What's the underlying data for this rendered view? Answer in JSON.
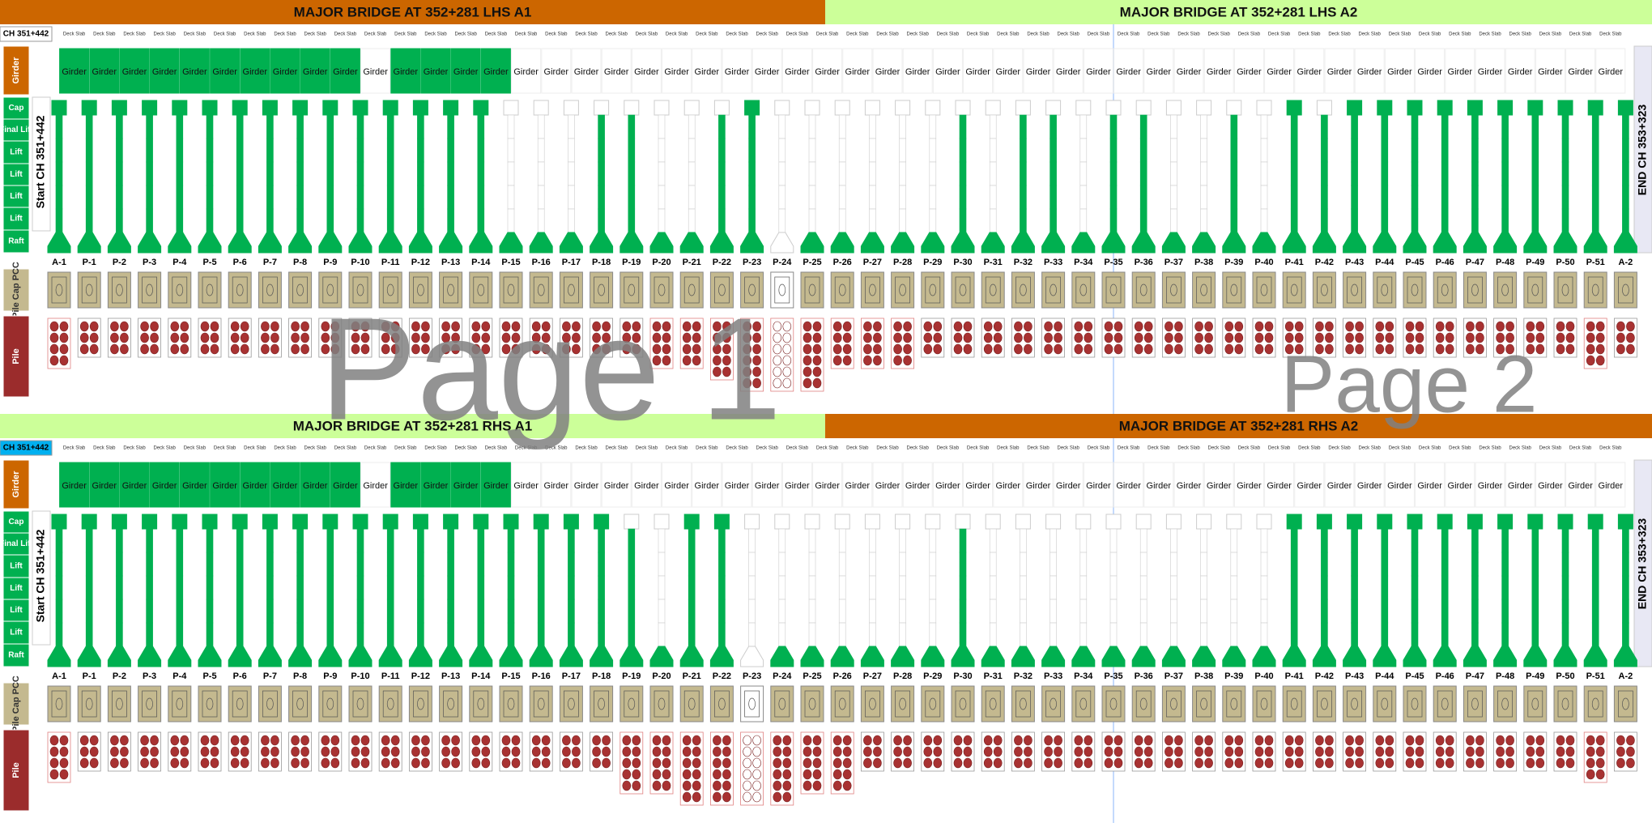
{
  "watermarks": [
    "Page 1",
    "Page 2"
  ],
  "row_labels": [
    "Girder",
    "Cap",
    "Final Lift",
    "Lift",
    "Lift",
    "Lift",
    "Lift",
    "Raft",
    "Pile Cap PCC",
    "Pile"
  ],
  "chainage": "CH 351+442",
  "start_label": "Start CH 351+442",
  "end_label": "END CH 353+323",
  "piers": [
    "A-1",
    "P-1",
    "P-2",
    "P-3",
    "P-4",
    "P-5",
    "P-6",
    "P-7",
    "P-8",
    "P-9",
    "P-10",
    "P-11",
    "P-12",
    "P-13",
    "P-14",
    "P-15",
    "P-16",
    "P-17",
    "P-18",
    "P-19",
    "P-20",
    "P-21",
    "P-22",
    "P-23",
    "P-24",
    "P-25",
    "P-26",
    "P-27",
    "P-28",
    "P-29",
    "P-30",
    "P-31",
    "P-32",
    "P-33",
    "P-34",
    "P-35",
    "P-36",
    "P-37",
    "P-38",
    "P-39",
    "P-40",
    "P-41",
    "P-42",
    "P-43",
    "P-44",
    "P-45",
    "P-46",
    "P-47",
    "P-48",
    "P-49",
    "P-50",
    "P-51",
    "A-2"
  ],
  "deck_slabs": [
    "Deck Slab",
    "Deck Slab",
    "Deck Slab",
    "Deck Slab",
    "Deck Slab",
    "Deck Slab",
    "Deck Slab",
    "Deck Slab",
    "Deck Slab",
    "Deck Slab",
    "Deck Slab",
    "Deck Slab",
    "Deck Slab",
    "Deck Slab",
    "Deck Slab",
    "Deck Slab",
    "Deck Slab",
    "Deck Slab",
    "Deck Slab",
    "Deck Slab",
    "Deck Slab",
    "Deck Slab",
    "Deck Slab",
    "Deck Slab",
    "Deck Slab",
    "Deck Slab",
    "Deck Slab",
    "Deck Slab",
    "Deck Slab",
    "Deck Slab",
    "Deck Slab",
    "Deck Slab",
    "Deck Slab",
    "Deck Slab",
    "Deck Slab",
    "Deck Slab",
    "Deck Slab",
    "Deck Slab",
    "Deck Slab",
    "Deck Slab",
    "Deck Slab",
    "Deck Slab",
    "Deck Slab",
    "Deck Slab",
    "Deck Slab",
    "Deck Slab",
    "Deck Slab",
    "Deck Slab",
    "Deck Slab",
    "Deck Slab",
    "Deck Slab",
    "Deck Slab"
  ],
  "girders": [
    "Girder",
    "Girder",
    "Girder",
    "Girder",
    "Girder",
    "Girder",
    "Girder",
    "Girder",
    "Girder",
    "Girder",
    "Girder",
    "Girder",
    "Girder",
    "Girder",
    "Girder",
    "Girder",
    "Girder",
    "Girder",
    "Girder",
    "Girder",
    "Girder",
    "Girder",
    "Girder",
    "Girder",
    "Girder",
    "Girder",
    "Girder",
    "Girder",
    "Girder",
    "Girder",
    "Girder",
    "Girder",
    "Girder",
    "Girder",
    "Girder",
    "Girder",
    "Girder",
    "Girder",
    "Girder",
    "Girder",
    "Girder",
    "Girder",
    "Girder",
    "Girder",
    "Girder",
    "Girder",
    "Girder",
    "Girder",
    "Girder",
    "Girder",
    "Girder",
    "Girder"
  ],
  "sections": [
    {
      "headers": [
        {
          "title": "MAJOR BRIDGE AT 352+281 LHS A1",
          "color": "#cc6600"
        },
        {
          "title": "MAJOR BRIDGE AT 352+281 LHS A2",
          "color": "#ccff99"
        }
      ],
      "chainage_color": "#ffffff",
      "girder_done": [
        1,
        1,
        1,
        1,
        1,
        1,
        1,
        1,
        1,
        1,
        0,
        1,
        1,
        1,
        1,
        0,
        0,
        0,
        0,
        0,
        0,
        0,
        0,
        0,
        0,
        0,
        0,
        0,
        0,
        0,
        0,
        0,
        0,
        0,
        0,
        0,
        0,
        0,
        0,
        0,
        0,
        0,
        0,
        0,
        0,
        0,
        0,
        0,
        0,
        0,
        0,
        0
      ],
      "pier_status": [
        7,
        7,
        7,
        7,
        7,
        7,
        7,
        7,
        7,
        7,
        7,
        7,
        7,
        7,
        7,
        1,
        1,
        1,
        6,
        6,
        1,
        1,
        6,
        7,
        0,
        1,
        1,
        1,
        1,
        1,
        6,
        1,
        6,
        6,
        1,
        6,
        6,
        1,
        1,
        6,
        1,
        7,
        6,
        7,
        7,
        7,
        7,
        7,
        7,
        7,
        7,
        7,
        7
      ],
      "pile_cap_done": [
        1,
        1,
        1,
        1,
        1,
        1,
        1,
        1,
        1,
        1,
        1,
        1,
        1,
        1,
        1,
        1,
        1,
        1,
        1,
        1,
        1,
        1,
        1,
        1,
        0,
        1,
        1,
        1,
        1,
        1,
        1,
        1,
        1,
        1,
        1,
        1,
        1,
        1,
        1,
        1,
        1,
        1,
        1,
        1,
        1,
        1,
        1,
        1,
        1,
        1,
        1,
        1,
        1
      ],
      "pile_count": [
        8,
        6,
        6,
        6,
        6,
        6,
        6,
        6,
        6,
        6,
        6,
        6,
        6,
        6,
        6,
        6,
        6,
        6,
        6,
        6,
        8,
        8,
        10,
        12,
        12,
        12,
        8,
        8,
        8,
        6,
        6,
        6,
        6,
        6,
        6,
        6,
        6,
        6,
        6,
        6,
        6,
        6,
        6,
        6,
        6,
        6,
        6,
        6,
        6,
        6,
        6,
        8,
        6
      ],
      "piles_done": [
        8,
        6,
        6,
        6,
        6,
        6,
        6,
        6,
        6,
        6,
        6,
        6,
        6,
        6,
        6,
        6,
        6,
        6,
        6,
        6,
        8,
        8,
        10,
        12,
        0,
        12,
        8,
        8,
        8,
        6,
        6,
        6,
        6,
        6,
        6,
        6,
        6,
        6,
        6,
        6,
        6,
        6,
        6,
        6,
        6,
        6,
        6,
        6,
        6,
        6,
        6,
        8,
        6
      ]
    },
    {
      "headers": [
        {
          "title": "MAJOR BRIDGE AT 352+281 RHS A1",
          "color": "#ccff99"
        },
        {
          "title": "MAJOR BRIDGE AT 352+281 RHS A2",
          "color": "#cc6600"
        }
      ],
      "chainage_color": "#00b0f0",
      "girder_done": [
        1,
        1,
        1,
        1,
        1,
        1,
        1,
        1,
        1,
        1,
        0,
        1,
        1,
        1,
        1,
        0,
        0,
        0,
        0,
        0,
        0,
        0,
        0,
        0,
        0,
        0,
        0,
        0,
        0,
        0,
        0,
        0,
        0,
        0,
        0,
        0,
        0,
        0,
        0,
        0,
        0,
        0,
        0,
        0,
        0,
        0,
        0,
        0,
        0,
        0,
        0,
        0
      ],
      "pier_status": [
        7,
        7,
        7,
        7,
        7,
        7,
        7,
        7,
        7,
        7,
        7,
        7,
        7,
        7,
        7,
        7,
        7,
        7,
        7,
        6,
        1,
        7,
        7,
        0,
        1,
        1,
        1,
        1,
        1,
        1,
        6,
        1,
        1,
        1,
        1,
        1,
        1,
        1,
        1,
        1,
        1,
        7,
        7,
        7,
        7,
        7,
        7,
        7,
        7,
        7,
        7,
        7,
        7
      ],
      "pile_cap_done": [
        1,
        1,
        1,
        1,
        1,
        1,
        1,
        1,
        1,
        1,
        1,
        1,
        1,
        1,
        1,
        1,
        1,
        1,
        1,
        1,
        1,
        1,
        1,
        0,
        1,
        1,
        1,
        1,
        1,
        1,
        1,
        1,
        1,
        1,
        1,
        1,
        1,
        1,
        1,
        1,
        1,
        1,
        1,
        1,
        1,
        1,
        1,
        1,
        1,
        1,
        1,
        1,
        1
      ],
      "pile_count": [
        8,
        6,
        6,
        6,
        6,
        6,
        6,
        6,
        6,
        6,
        6,
        6,
        6,
        6,
        6,
        6,
        6,
        6,
        6,
        10,
        10,
        12,
        12,
        12,
        12,
        10,
        10,
        6,
        6,
        6,
        6,
        6,
        6,
        6,
        6,
        6,
        6,
        6,
        6,
        6,
        6,
        6,
        6,
        6,
        6,
        6,
        6,
        6,
        6,
        6,
        6,
        8,
        6
      ],
      "piles_done": [
        8,
        6,
        6,
        6,
        6,
        6,
        6,
        6,
        6,
        6,
        6,
        6,
        6,
        6,
        6,
        6,
        6,
        6,
        6,
        10,
        10,
        12,
        12,
        0,
        12,
        10,
        10,
        6,
        6,
        6,
        6,
        6,
        6,
        6,
        6,
        6,
        6,
        6,
        6,
        6,
        6,
        6,
        6,
        6,
        6,
        6,
        6,
        6,
        6,
        6,
        6,
        8,
        6
      ]
    }
  ]
}
